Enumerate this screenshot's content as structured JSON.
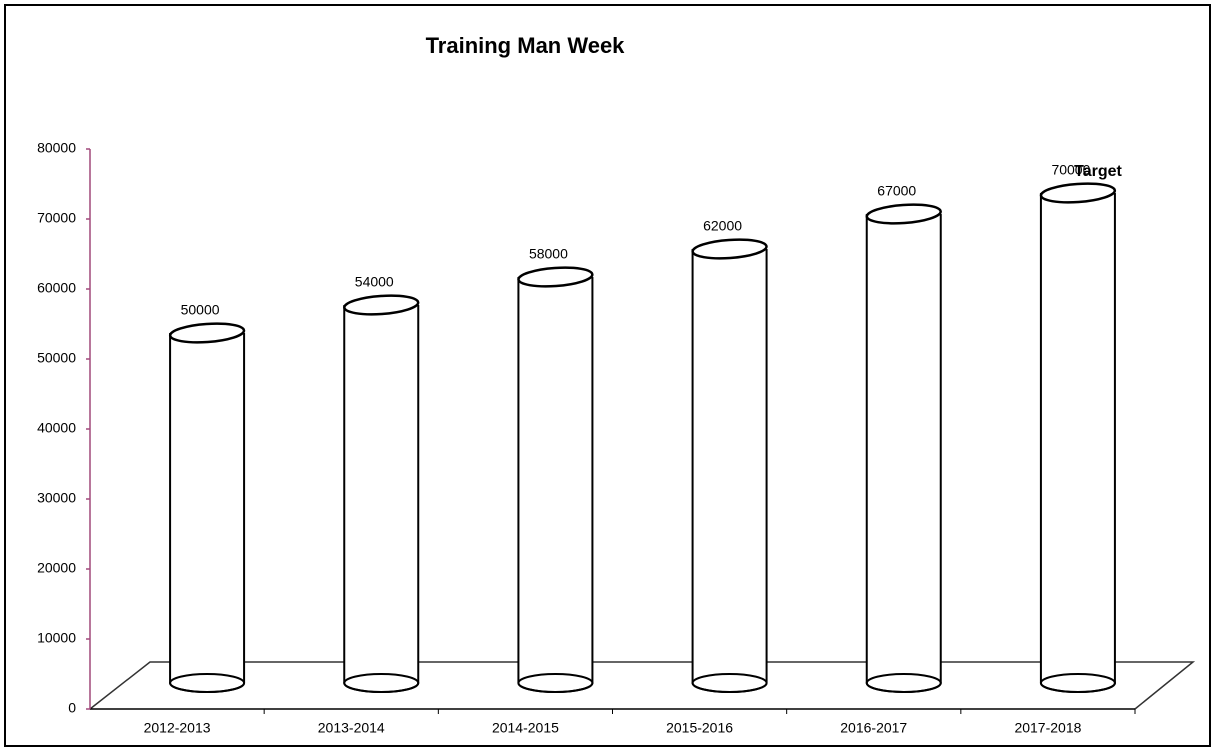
{
  "chart_data": {
    "type": "bar",
    "title": "Training Man Week",
    "annotation": "Target",
    "categories": [
      "2012-2013",
      "2013-2014",
      "2014-2015",
      "2015-2016",
      "2016-2017",
      "2017-2018"
    ],
    "values": [
      50000,
      54000,
      58000,
      62000,
      67000,
      70000
    ],
    "color": "#ffffff",
    "ylim": [
      0,
      80000
    ],
    "yticks": [
      0,
      10000,
      20000,
      30000,
      40000,
      50000,
      60000,
      70000,
      80000
    ],
    "grid": false
  }
}
